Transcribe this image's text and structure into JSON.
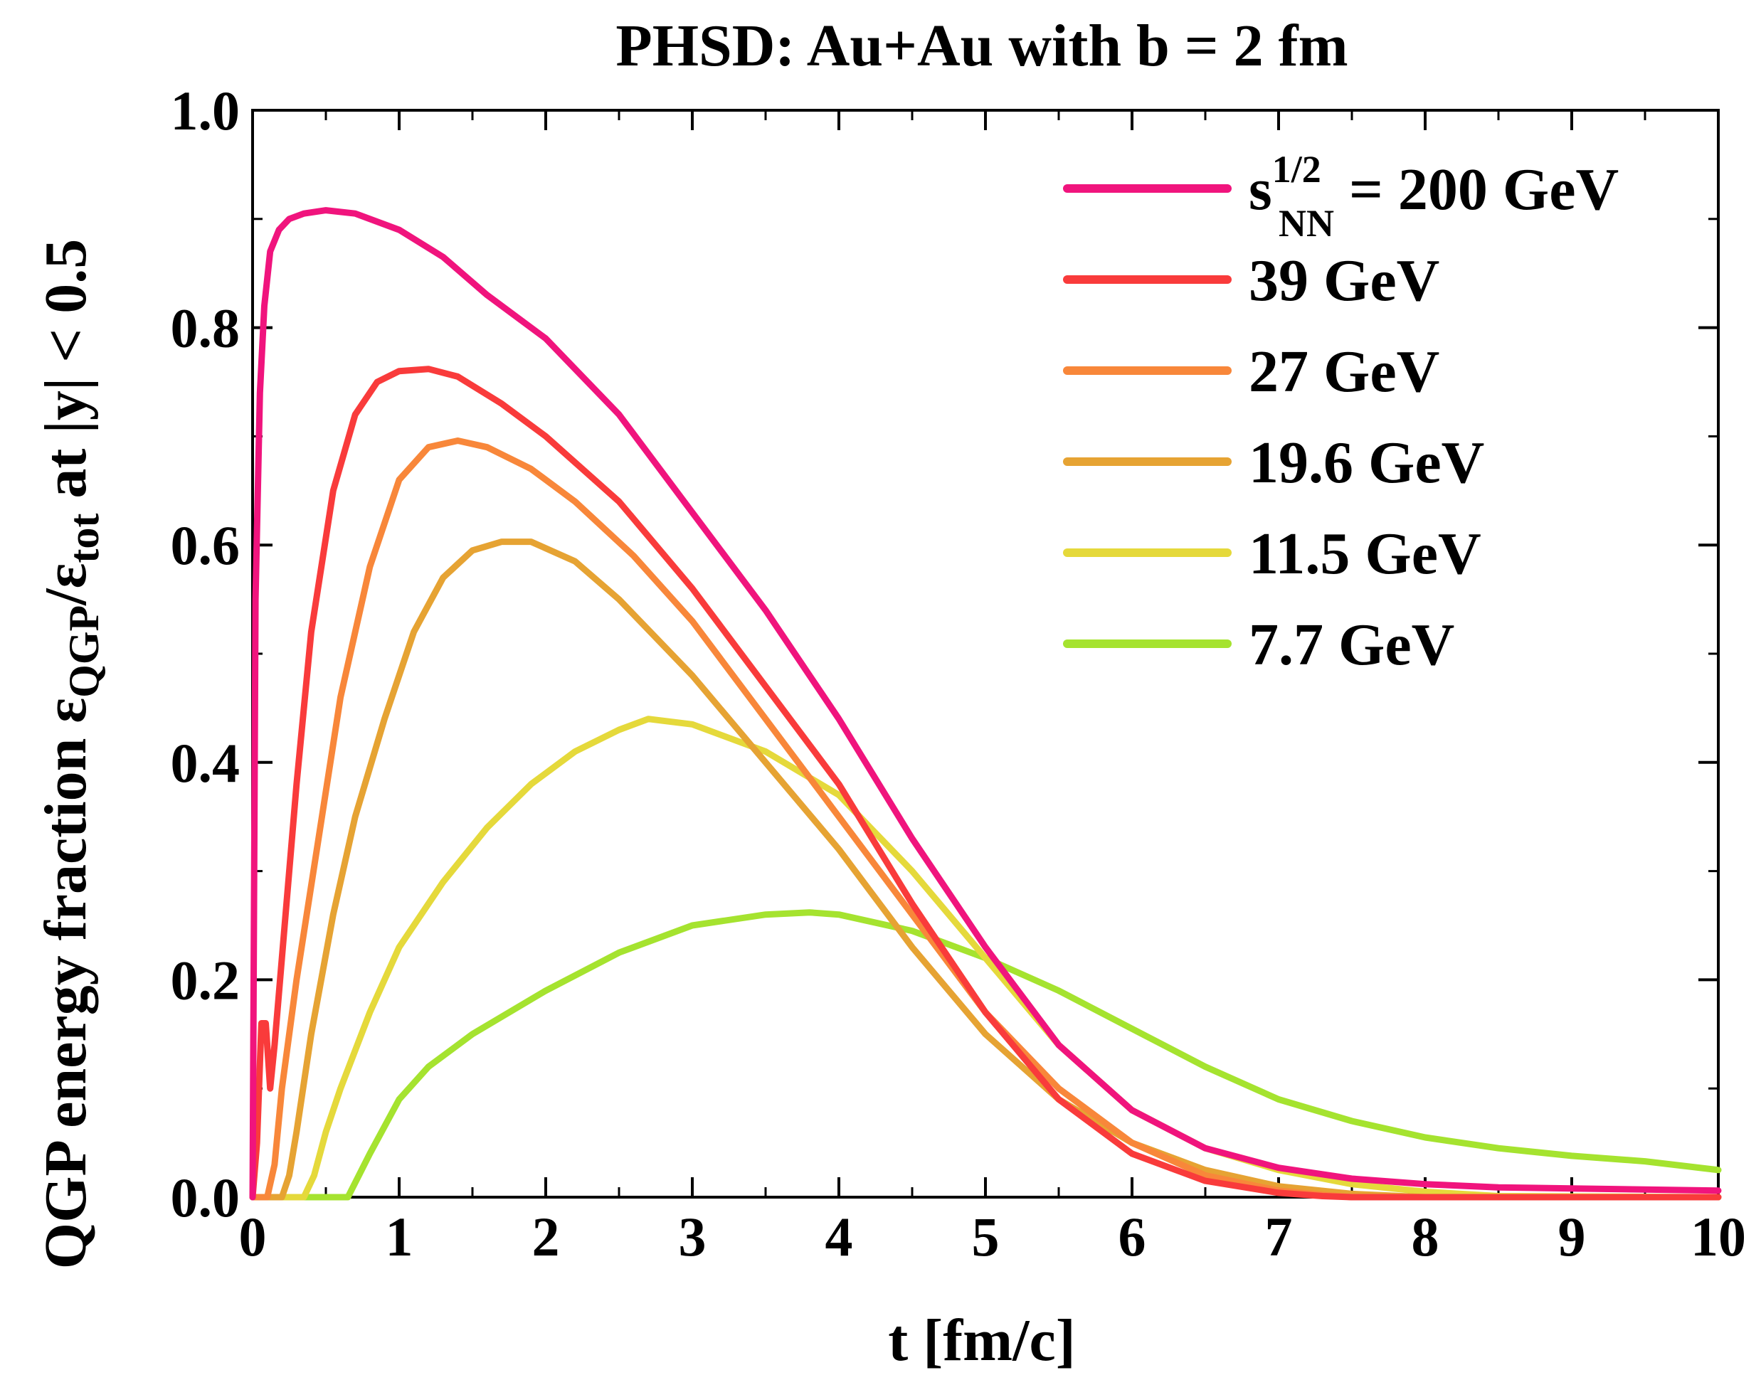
{
  "chart_data": {
    "type": "line",
    "title": "PHSD: Au+Au with b = 2 fm",
    "xlabel": "t [fm/c]",
    "ylabel": {
      "prefix": "QGP energy fraction ε",
      "sub1": "QGP",
      "mid": "/ε",
      "sub2": "tot",
      "suffix": " at |y| < 0.5"
    },
    "xlim": [
      0,
      10
    ],
    "ylim": [
      0,
      1.0
    ],
    "x_ticks": [
      "0",
      "1",
      "2",
      "3",
      "4",
      "5",
      "6",
      "7",
      "8",
      "9",
      "10"
    ],
    "y_ticks": [
      "0.0",
      "0.2",
      "0.4",
      "0.6",
      "0.8",
      "1.0"
    ],
    "legend_position": "top-right",
    "legend_first_label": {
      "main": "s",
      "sup": "1/2",
      "sub": "NN",
      "rest": " = 200 GeV"
    },
    "series": [
      {
        "name": "200 GeV",
        "label": "",
        "color": "#f0147d",
        "x": [
          0,
          0.02,
          0.05,
          0.08,
          0.12,
          0.18,
          0.25,
          0.35,
          0.5,
          0.7,
          1.0,
          1.3,
          1.6,
          2.0,
          2.5,
          3.0,
          3.5,
          4.0,
          4.5,
          5.0,
          5.5,
          6.0,
          6.5,
          7.0,
          7.5,
          8.0,
          8.5,
          9.0,
          9.5,
          10.0
        ],
        "y": [
          0.0,
          0.55,
          0.74,
          0.82,
          0.87,
          0.89,
          0.9,
          0.905,
          0.908,
          0.905,
          0.89,
          0.865,
          0.83,
          0.79,
          0.72,
          0.63,
          0.54,
          0.44,
          0.33,
          0.23,
          0.14,
          0.08,
          0.045,
          0.027,
          0.017,
          0.012,
          0.009,
          0.008,
          0.007,
          0.006
        ]
      },
      {
        "name": "39 GeV",
        "label": "39 GeV",
        "color": "#f93b3b",
        "x": [
          0,
          0.03,
          0.06,
          0.09,
          0.12,
          0.15,
          0.2,
          0.3,
          0.4,
          0.55,
          0.7,
          0.85,
          1.0,
          1.2,
          1.4,
          1.7,
          2.0,
          2.5,
          3.0,
          3.5,
          4.0,
          4.5,
          5.0,
          5.5,
          6.0,
          6.5,
          7.0,
          7.3,
          7.5,
          10.0
        ],
        "y": [
          0.0,
          0.05,
          0.16,
          0.16,
          0.1,
          0.14,
          0.22,
          0.38,
          0.52,
          0.65,
          0.72,
          0.75,
          0.76,
          0.762,
          0.755,
          0.73,
          0.7,
          0.64,
          0.56,
          0.47,
          0.38,
          0.27,
          0.17,
          0.09,
          0.04,
          0.015,
          0.004,
          0.001,
          0.0,
          0.0
        ]
      },
      {
        "name": "27 GeV",
        "label": "27 GeV",
        "color": "#f8873a",
        "x": [
          0,
          0.1,
          0.15,
          0.2,
          0.3,
          0.45,
          0.6,
          0.8,
          1.0,
          1.2,
          1.4,
          1.6,
          1.9,
          2.2,
          2.6,
          3.0,
          3.5,
          4.0,
          4.5,
          5.0,
          5.5,
          6.0,
          6.5,
          7.0,
          7.3,
          7.5,
          10.0
        ],
        "y": [
          0.0,
          0.0,
          0.03,
          0.1,
          0.2,
          0.33,
          0.46,
          0.58,
          0.66,
          0.69,
          0.696,
          0.69,
          0.67,
          0.64,
          0.59,
          0.53,
          0.44,
          0.35,
          0.26,
          0.17,
          0.1,
          0.05,
          0.02,
          0.006,
          0.002,
          0.0,
          0.0
        ]
      },
      {
        "name": "19.6 GeV",
        "label": "19.6 GeV",
        "color": "#e6a333",
        "x": [
          0,
          0.2,
          0.25,
          0.3,
          0.4,
          0.55,
          0.7,
          0.9,
          1.1,
          1.3,
          1.5,
          1.7,
          1.9,
          2.2,
          2.5,
          3.0,
          3.5,
          4.0,
          4.5,
          5.0,
          5.5,
          6.0,
          6.5,
          7.0,
          7.5,
          8.0,
          10.0
        ],
        "y": [
          0.0,
          0.0,
          0.02,
          0.06,
          0.15,
          0.26,
          0.35,
          0.44,
          0.52,
          0.57,
          0.595,
          0.603,
          0.603,
          0.585,
          0.55,
          0.48,
          0.4,
          0.32,
          0.23,
          0.15,
          0.09,
          0.05,
          0.025,
          0.01,
          0.003,
          0.0,
          0.0
        ]
      },
      {
        "name": "11.5 GeV",
        "label": "11.5 GeV",
        "color": "#e5d93b",
        "x": [
          0,
          0.35,
          0.42,
          0.5,
          0.6,
          0.8,
          1.0,
          1.3,
          1.6,
          1.9,
          2.2,
          2.5,
          2.7,
          3.0,
          3.5,
          4.0,
          4.5,
          5.0,
          5.5,
          6.0,
          6.5,
          7.0,
          7.5,
          8.0,
          8.5,
          10.0
        ],
        "y": [
          0.0,
          0.0,
          0.02,
          0.06,
          0.1,
          0.17,
          0.23,
          0.29,
          0.34,
          0.38,
          0.41,
          0.43,
          0.44,
          0.435,
          0.41,
          0.37,
          0.3,
          0.22,
          0.14,
          0.08,
          0.045,
          0.025,
          0.012,
          0.005,
          0.001,
          0.0
        ]
      },
      {
        "name": "7.7 GeV",
        "label": "7.7 GeV",
        "color": "#a5e32f",
        "x": [
          0,
          0.65,
          0.8,
          1.0,
          1.2,
          1.5,
          2.0,
          2.5,
          3.0,
          3.5,
          3.8,
          4.0,
          4.5,
          5.0,
          5.5,
          6.0,
          6.5,
          7.0,
          7.5,
          8.0,
          8.5,
          9.0,
          9.5,
          10.0
        ],
        "y": [
          0.0,
          0.0,
          0.04,
          0.09,
          0.12,
          0.15,
          0.19,
          0.225,
          0.25,
          0.26,
          0.262,
          0.26,
          0.245,
          0.22,
          0.19,
          0.155,
          0.12,
          0.09,
          0.07,
          0.055,
          0.045,
          0.038,
          0.033,
          0.025
        ]
      }
    ]
  }
}
